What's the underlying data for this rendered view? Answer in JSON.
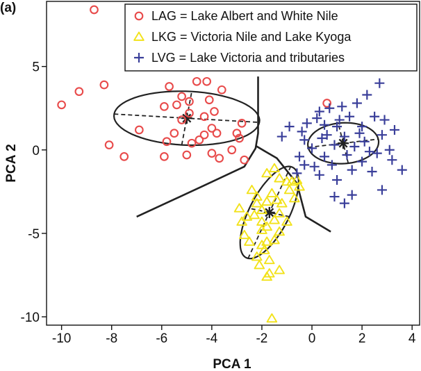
{
  "chart_data": {
    "type": "scatter",
    "panel_label": "(a)",
    "xlabel": "PCA 1",
    "ylabel": "PCA 2",
    "xlim": [
      -10.6,
      4.3
    ],
    "ylim": [
      -10.5,
      8.9
    ],
    "xticks": [
      -10,
      -8,
      -6,
      -4,
      -2,
      0,
      2,
      4
    ],
    "yticks": [
      -10,
      -5,
      0,
      5
    ],
    "grid": false,
    "legend_position": "top-right",
    "colors": {
      "LAG": "#e84a4a",
      "LKG": "#f2e21a",
      "LVG": "#3a3f9a",
      "lines": "#222222"
    },
    "series": [
      {
        "name": "LAG = Lake Albert and White Nile",
        "marker": "circle",
        "points": [
          [
            -10,
            2.7
          ],
          [
            -9.3,
            3.5
          ],
          [
            -8.7,
            8.4
          ],
          [
            -8.3,
            3.9
          ],
          [
            -8.1,
            0.3
          ],
          [
            -7.5,
            -0.4
          ],
          [
            -6.9,
            1.2
          ],
          [
            -5.7,
            3.8
          ],
          [
            -5.9,
            2.6
          ],
          [
            -5.4,
            2.7
          ],
          [
            -4.9,
            2.2
          ],
          [
            -5.2,
            3.2
          ],
          [
            -4.6,
            4.1
          ],
          [
            -4.2,
            4.1
          ],
          [
            -3.6,
            3.6
          ],
          [
            -4.1,
            3.0
          ],
          [
            -4.3,
            2.0
          ],
          [
            -4.0,
            1.3
          ],
          [
            -3.8,
            1.0
          ],
          [
            -4.3,
            0.9
          ],
          [
            -4.5,
            0.6
          ],
          [
            -4.8,
            0.4
          ],
          [
            -5.5,
            1.0
          ],
          [
            -5.0,
            -0.3
          ],
          [
            -5.8,
            0.5
          ],
          [
            -5.9,
            -0.4
          ],
          [
            -4.0,
            -0.2
          ],
          [
            -3.7,
            -0.5
          ],
          [
            -3.2,
            0.0
          ],
          [
            -3.0,
            1.0
          ],
          [
            -2.8,
            1.6
          ],
          [
            -2.9,
            0.7
          ],
          [
            -2.7,
            -0.6
          ],
          [
            -5.2,
            1.8
          ],
          [
            -4.9,
            2.9
          ],
          [
            -3.9,
            2.3
          ],
          [
            0.6,
            2.8
          ]
        ]
      },
      {
        "name": "LKG = Victoria Nile and Lake Kyoga",
        "marker": "triangle",
        "points": [
          [
            -1.5,
            -1.1
          ],
          [
            -1.8,
            -1.4
          ],
          [
            -1.3,
            -1.7
          ],
          [
            -1.0,
            -1.9
          ],
          [
            -0.8,
            -1.9
          ],
          [
            -0.6,
            -1.8
          ],
          [
            -0.5,
            -2.2
          ],
          [
            -0.9,
            -2.4
          ],
          [
            -1.6,
            -2.6
          ],
          [
            -1.4,
            -3.0
          ],
          [
            -2.2,
            -2.8
          ],
          [
            -2.2,
            -3.2
          ],
          [
            -1.8,
            -3.1
          ],
          [
            -1.3,
            -3.8
          ],
          [
            -1.5,
            -4.2
          ],
          [
            -2.3,
            -3.9
          ],
          [
            -2.0,
            -4.3
          ],
          [
            -2.8,
            -4.3
          ],
          [
            -2.6,
            -4.0
          ],
          [
            -2.0,
            -4.8
          ],
          [
            -1.5,
            -5.4
          ],
          [
            -1.8,
            -5.5
          ],
          [
            -2.5,
            -5.5
          ],
          [
            -2.0,
            -5.7
          ],
          [
            -1.9,
            -6.0
          ],
          [
            -2.2,
            -6.4
          ],
          [
            -1.7,
            -6.6
          ],
          [
            -2.1,
            -6.9
          ],
          [
            -1.3,
            -7.2
          ],
          [
            -1.7,
            -7.4
          ],
          [
            -1.8,
            -7.6
          ],
          [
            -1.6,
            -10.1
          ],
          [
            -2.7,
            -5.1
          ],
          [
            -2.9,
            -3.5
          ],
          [
            -2.4,
            -2.4
          ],
          [
            -1.3,
            -4.9
          ],
          [
            -1.0,
            -4.3
          ],
          [
            -1.2,
            -3.2
          ],
          [
            -2.0,
            -3.6
          ],
          [
            -1.8,
            -4.6
          ],
          [
            -0.7,
            -2.9
          ]
        ]
      },
      {
        "name": "LVG = Lake Victoria and tributaries",
        "marker": "plus",
        "points": [
          [
            2.7,
            4.0
          ],
          [
            2.2,
            3.3
          ],
          [
            1.8,
            2.8
          ],
          [
            1.2,
            2.6
          ],
          [
            0.7,
            2.5
          ],
          [
            0.3,
            2.3
          ],
          [
            1.5,
            2.0
          ],
          [
            2.5,
            2.0
          ],
          [
            -0.2,
            1.6
          ],
          [
            0.5,
            1.5
          ],
          [
            1.0,
            1.4
          ],
          [
            2.0,
            1.4
          ],
          [
            3.3,
            1.2
          ],
          [
            2.8,
            0.9
          ],
          [
            1.3,
            0.8
          ],
          [
            0.4,
            0.7
          ],
          [
            -0.3,
            0.6
          ],
          [
            -1.2,
            0.8
          ],
          [
            2.1,
            0.5
          ],
          [
            0.9,
            0.3
          ],
          [
            0.0,
            0.1
          ],
          [
            1.7,
            0.2
          ],
          [
            3.1,
            0.0
          ],
          [
            2.6,
            -0.2
          ],
          [
            1.4,
            -0.3
          ],
          [
            0.5,
            -0.4
          ],
          [
            -0.5,
            -0.4
          ],
          [
            -0.6,
            -1.4
          ],
          [
            2.0,
            -0.7
          ],
          [
            3.2,
            -0.6
          ],
          [
            0.8,
            -0.9
          ],
          [
            1.6,
            -1.2
          ],
          [
            2.4,
            -1.3
          ],
          [
            0.1,
            -1.0
          ],
          [
            2.8,
            -2.4
          ],
          [
            1.6,
            -2.7
          ],
          [
            0.9,
            -2.8
          ],
          [
            1.3,
            -3.2
          ],
          [
            3.6,
            -1.2
          ],
          [
            0.2,
            1.9
          ],
          [
            1.1,
            1.8
          ],
          [
            2.9,
            1.8
          ],
          [
            -0.4,
            1.1
          ],
          [
            0.6,
            0.9
          ],
          [
            1.9,
            1.0
          ],
          [
            2.3,
            -0.1
          ],
          [
            0.3,
            -1.5
          ],
          [
            -0.3,
            -0.9
          ],
          [
            1.0,
            -1.8
          ],
          [
            -0.9,
            1.4
          ]
        ]
      }
    ],
    "ellipses": [
      {
        "group": "LAG",
        "center": [
          -5.0,
          1.9
        ],
        "semi_axis_1": [
          2.9,
          -0.25
        ],
        "semi_axis_2": [
          0.2,
          1.6
        ]
      },
      {
        "group": "LKG",
        "center": [
          -1.7,
          -3.75
        ],
        "semi_axis_1": [
          0.85,
          2.75
        ],
        "semi_axis_2": [
          -0.8,
          0.25
        ]
      },
      {
        "group": "LVG",
        "center": [
          1.25,
          0.4
        ],
        "semi_axis_1": [
          1.4,
          0.25
        ],
        "semi_axis_2": [
          -0.2,
          1.2
        ]
      }
    ],
    "boundaries": [
      [
        [
          -7.0,
          -4.0
        ],
        [
          -4.4,
          -2.2
        ],
        [
          -2.7,
          -1.0
        ],
        [
          -2.25,
          0.1
        ],
        [
          -2.15,
          1.0
        ],
        [
          -2.15,
          4.4
        ]
      ],
      [
        [
          -2.25,
          0.25
        ],
        [
          -1.4,
          -0.5
        ],
        [
          -0.6,
          -2.0
        ],
        [
          -0.25,
          -4.0
        ],
        [
          0.75,
          -4.9
        ]
      ]
    ]
  }
}
